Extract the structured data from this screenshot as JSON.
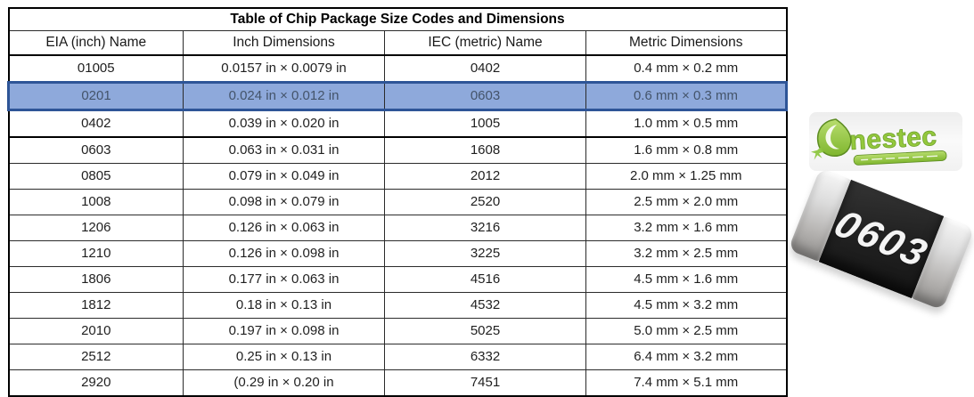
{
  "title": "Table of Chip Package Size Codes and Dimensions",
  "table": {
    "headers": [
      "EIA (inch) Name",
      "Inch Dimensions",
      "IEC (metric) Name",
      "Metric Dimensions"
    ],
    "rows": [
      [
        "01005",
        "0.0157 in × 0.0079 in",
        "0402",
        "0.4 mm × 0.2 mm"
      ],
      [
        "0201",
        "0.024 in × 0.012 in",
        "0603",
        "0.6 mm × 0.3 mm"
      ],
      [
        "0402",
        "0.039 in × 0.020 in",
        "1005",
        "1.0 mm × 0.5 mm"
      ],
      [
        "0603",
        "0.063 in × 0.031 in",
        "1608",
        "1.6 mm × 0.8 mm"
      ],
      [
        "0805",
        "0.079 in × 0.049 in",
        "2012",
        "2.0 mm × 1.25 mm"
      ],
      [
        "1008",
        "0.098 in × 0.079 in",
        "2520",
        "2.5 mm × 2.0 mm"
      ],
      [
        "1206",
        "0.126 in × 0.063 in",
        "3216",
        "3.2 mm × 1.6 mm"
      ],
      [
        "1210",
        "0.126 in × 0.098 in",
        "3225",
        "3.2 mm × 2.5 mm"
      ],
      [
        "1806",
        "0.177 in × 0.063 in",
        "4516",
        "4.5 mm × 1.6 mm"
      ],
      [
        "1812",
        "0.18 in × 0.13 in",
        "4532",
        "4.5 mm × 3.2 mm"
      ],
      [
        "2010",
        "0.197 in × 0.098 in",
        "5025",
        "5.0 mm × 2.5 mm"
      ],
      [
        "2512",
        "0.25 in × 0.13 in",
        "6332",
        "6.4 mm × 3.2 mm"
      ],
      [
        "2920",
        "(0.29 in × 0.20 in",
        "7451",
        "7.4 mm × 5.1 mm"
      ]
    ],
    "highlighted_row": {
      "index": 1,
      "eia": "0201"
    },
    "group_separator_after_index": 2
  },
  "logo": {
    "brand": "Onestec",
    "letters_after_glyph": "nestec"
  },
  "chip_photo": {
    "label": "0603"
  },
  "colors": {
    "highlight_fill": "#8EA9DB",
    "highlight_border": "#2E5597",
    "highlight_text": "#44546A",
    "logo_green": "#8DC63F",
    "logo_green_dark": "#6FA22C",
    "chip_body": "#222222",
    "chip_cap": "#C9C7C5"
  }
}
